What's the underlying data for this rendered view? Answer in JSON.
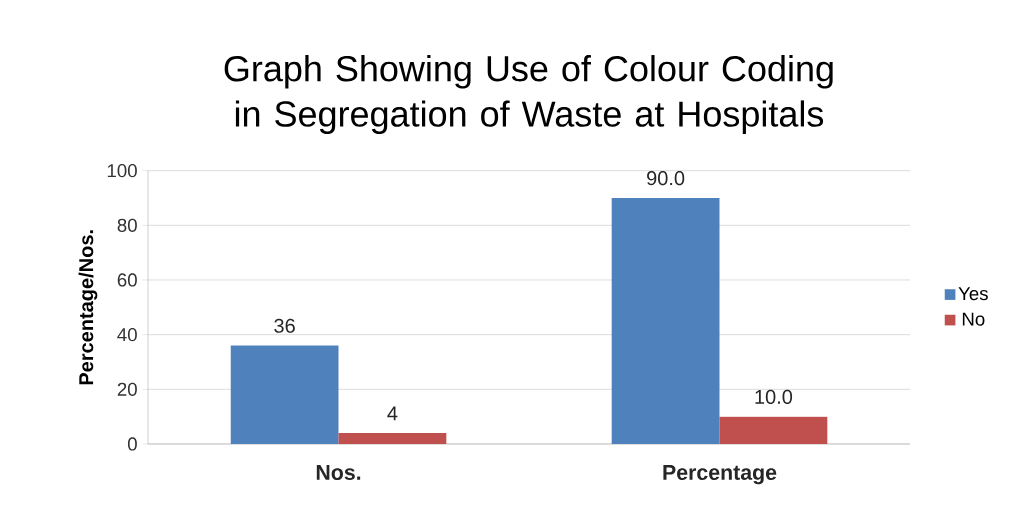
{
  "chart_data": {
    "type": "bar",
    "title": "Graph Showing Use of Colour Coding in Segregation of Waste at Hospitals",
    "ylabel": "Percentage/Nos.",
    "categories": [
      "Nos.",
      "Percentage"
    ],
    "series": [
      {
        "name": "Yes",
        "color": "#4f81bd",
        "values": [
          36,
          90.0
        ],
        "value_labels": [
          "36",
          "90.0"
        ]
      },
      {
        "name": "No",
        "color": "#c0504d",
        "values": [
          4,
          10.0
        ],
        "value_labels": [
          "4",
          "10.0"
        ]
      }
    ],
    "ylim": [
      0,
      100
    ],
    "yticks": [
      0,
      20,
      40,
      60,
      80,
      100
    ],
    "grid": "y",
    "legend": "right"
  }
}
